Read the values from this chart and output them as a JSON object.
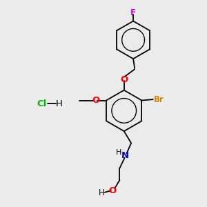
{
  "bg_color": "#ebebeb",
  "atom_colors": {
    "C": "#000000",
    "H": "#000000",
    "O": "#ff0000",
    "N": "#0000cc",
    "Br": "#cc8800",
    "F": "#cc00cc",
    "Cl": "#00bb00"
  },
  "bond_color": "#000000",
  "bond_width": 1.3,
  "fig_width": 3.0,
  "fig_height": 3.0,
  "dpi": 100
}
